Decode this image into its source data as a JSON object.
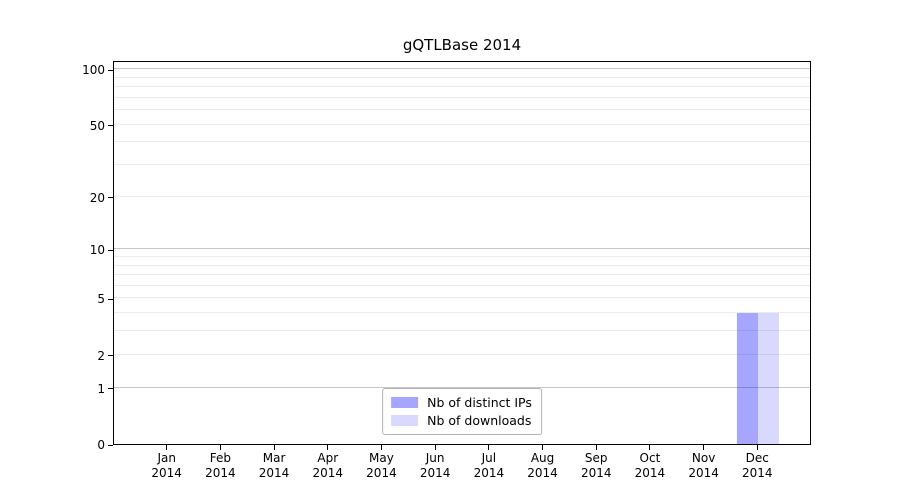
{
  "figure": {
    "background": "#ffffff"
  },
  "chart_data": {
    "type": "bar",
    "title": "gQTLBase 2014",
    "categories": [
      {
        "month": "Jan",
        "year": "2014"
      },
      {
        "month": "Feb",
        "year": "2014"
      },
      {
        "month": "Mar",
        "year": "2014"
      },
      {
        "month": "Apr",
        "year": "2014"
      },
      {
        "month": "May",
        "year": "2014"
      },
      {
        "month": "Jun",
        "year": "2014"
      },
      {
        "month": "Jul",
        "year": "2014"
      },
      {
        "month": "Aug",
        "year": "2014"
      },
      {
        "month": "Sep",
        "year": "2014"
      },
      {
        "month": "Oct",
        "year": "2014"
      },
      {
        "month": "Nov",
        "year": "2014"
      },
      {
        "month": "Dec",
        "year": "2014"
      }
    ],
    "series": [
      {
        "name": "Nb of distinct IPs",
        "color": "#0000ff",
        "alpha": 0.35,
        "solid_hex": "#a6a6ff",
        "values": [
          0,
          0,
          0,
          0,
          0,
          0,
          0,
          0,
          0,
          0,
          0,
          4
        ]
      },
      {
        "name": "Nb of downloads",
        "color": "#0000ff",
        "alpha": 0.15,
        "solid_hex": "#d9d9ff",
        "values": [
          0,
          0,
          0,
          0,
          0,
          0,
          0,
          0,
          0,
          0,
          0,
          4
        ]
      }
    ],
    "yscale": "log1p",
    "ylim": [
      0,
      112
    ],
    "yticks": [
      0,
      1,
      2,
      5,
      10,
      20,
      50,
      100
    ],
    "gridlines": {
      "major": [
        1,
        10,
        100
      ],
      "minor": [
        2,
        3,
        4,
        5,
        6,
        7,
        8,
        9,
        20,
        30,
        40,
        50,
        60,
        70,
        80,
        90
      ]
    },
    "legend": {
      "position": "lower center",
      "entries": [
        "Nb of distinct IPs",
        "Nb of downloads"
      ]
    },
    "colors": {
      "grid_major": "#c8c8c8",
      "grid_minor": "#ebebeb",
      "axis": "#000000",
      "text": "#000000",
      "legend_border": "#b3b3b3",
      "background": "#ffffff"
    }
  }
}
